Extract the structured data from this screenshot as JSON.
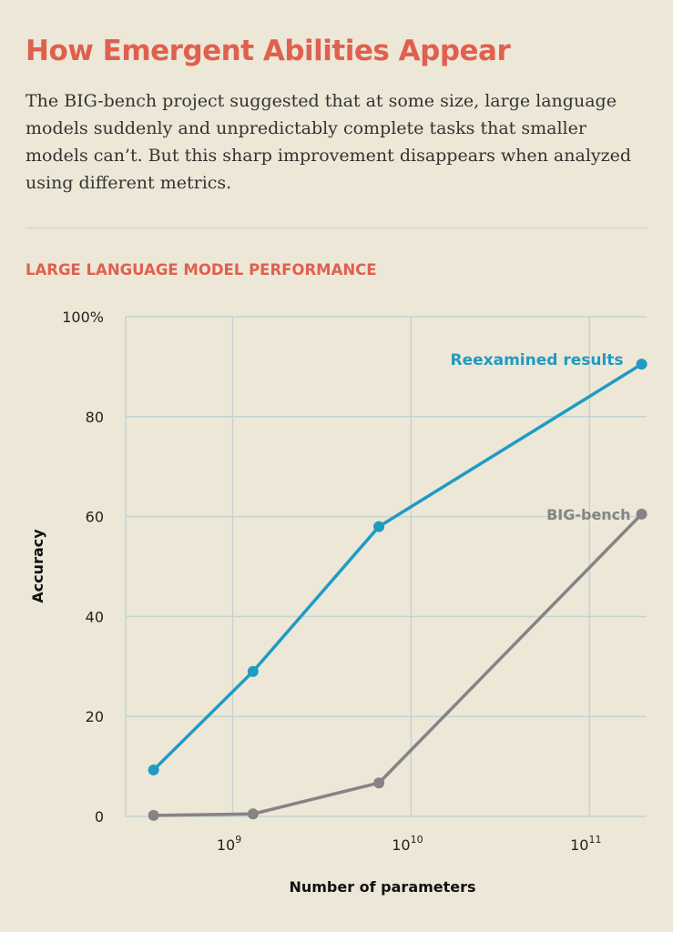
{
  "title": "How Emergent Abilities Appear",
  "description": "The BIG-bench project suggested that at some size, large language models suddenly and unpredictably complete tasks that smaller models can’t. But this sharp improvement disappears when analyzed using different metrics.",
  "chart_data": {
    "type": "line",
    "title": "LARGE LANGUAGE MODEL PERFORMANCE",
    "xlabel": "Number of parameters",
    "ylabel": "Accuracy",
    "xscale": "log",
    "xlim_log10": [
      8.4,
      11.32
    ],
    "ylim": [
      0,
      100
    ],
    "xticks": [
      {
        "exp": 9,
        "base": "10",
        "sup": "9"
      },
      {
        "exp": 10,
        "base": "10",
        "sup": "10"
      },
      {
        "exp": 11,
        "base": "10",
        "sup": "11"
      }
    ],
    "yticks": [
      {
        "v": 0,
        "label": "0"
      },
      {
        "v": 20,
        "label": "20"
      },
      {
        "v": 40,
        "label": "40"
      },
      {
        "v": 60,
        "label": "60"
      },
      {
        "v": 80,
        "label": "80"
      },
      {
        "v": 100,
        "label": "100%"
      }
    ],
    "grid": true,
    "series": [
      {
        "name": "Reexamined results",
        "color": "#1f9bc4",
        "x": [
          360000000.0,
          1300000000.0,
          6600000000.0,
          196000000000.0
        ],
        "values": [
          9.3,
          29,
          58,
          90.5
        ]
      },
      {
        "name": "BIG-bench",
        "color": "#858385",
        "x": [
          360000000.0,
          1300000000.0,
          6600000000.0,
          196000000000.0
        ],
        "values": [
          0.2,
          0.5,
          6.7,
          60.5
        ]
      }
    ]
  }
}
